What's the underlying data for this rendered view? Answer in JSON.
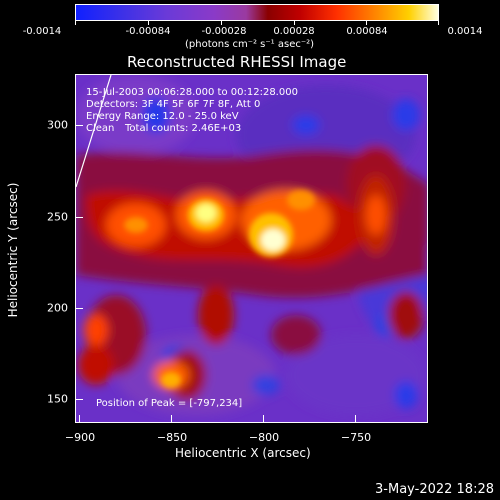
{
  "colorbar": {
    "ticks": [
      "-0.0014",
      "-0.00084",
      "-0.00028",
      "0.00028",
      "0.00084",
      "0.0014"
    ],
    "units": "(photons cm⁻² s⁻¹ asec⁻²)"
  },
  "title": "Reconstructed RHESSI Image",
  "info": {
    "time_range": "15-Jul-2003 00:06:28.000 to 00:12:28.000",
    "detectors": "Detectors: 3F 4F 5F 6F 7F 8F, Att 0",
    "energy": "Energy Range: 12.0 - 25.0 keV",
    "method": "Clean",
    "counts": "Total counts: 2.46E+03",
    "peak": "Position of Peak = [-797,234]"
  },
  "axes": {
    "xlabel": "Heliocentric X (arcsec)",
    "ylabel": "Heliocentric Y (arcsec)",
    "x_ticks": [
      "−900",
      "−850",
      "−800",
      "−750"
    ],
    "y_ticks": [
      "300",
      "250",
      "200",
      "150"
    ]
  },
  "timestamp": "3-May-2022 18:28",
  "colors": {
    "background": "#000000",
    "text": "#ffffff",
    "low": "#1020ff",
    "mid": "#8a3ac8",
    "high": "#ffffe0"
  }
}
